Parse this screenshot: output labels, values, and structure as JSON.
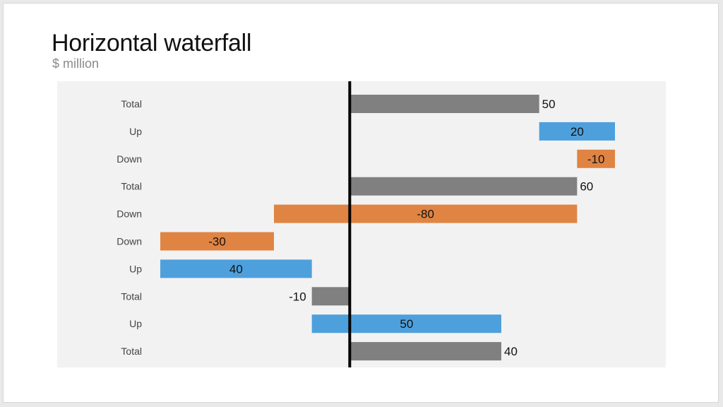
{
  "header": {
    "title": "Horizontal waterfall",
    "subtitle": "$ million"
  },
  "colors": {
    "panel": "#f2f2f2",
    "total": "#808080",
    "up": "#4ea0dc",
    "down": "#e08443",
    "axis": "#000000",
    "category_label": "#444444",
    "value_label": "#111111"
  },
  "chart_data": {
    "type": "bar",
    "orientation": "horizontal",
    "subtype": "waterfall",
    "title": "Horizontal waterfall",
    "subtitle": "$ million",
    "xlim": [
      -50,
      70
    ],
    "grid": false,
    "bars": [
      {
        "category": "Total",
        "kind": "total",
        "start": 0,
        "end": 50,
        "label": "50"
      },
      {
        "category": "Up",
        "kind": "up",
        "start": 50,
        "end": 70,
        "label": "20"
      },
      {
        "category": "Down",
        "kind": "down",
        "start": 70,
        "end": 60,
        "label": "-10"
      },
      {
        "category": "Total",
        "kind": "total",
        "start": 0,
        "end": 60,
        "label": "60"
      },
      {
        "category": "Down",
        "kind": "down",
        "start": 60,
        "end": -20,
        "label": "-80"
      },
      {
        "category": "Down",
        "kind": "down",
        "start": -20,
        "end": -50,
        "label": "-30"
      },
      {
        "category": "Up",
        "kind": "up",
        "start": -50,
        "end": -10,
        "label": "40"
      },
      {
        "category": "Total",
        "kind": "total",
        "start": 0,
        "end": -10,
        "label": "-10"
      },
      {
        "category": "Up",
        "kind": "up",
        "start": -10,
        "end": 40,
        "label": "50"
      },
      {
        "category": "Total",
        "kind": "total",
        "start": 0,
        "end": 40,
        "label": "40"
      }
    ]
  }
}
